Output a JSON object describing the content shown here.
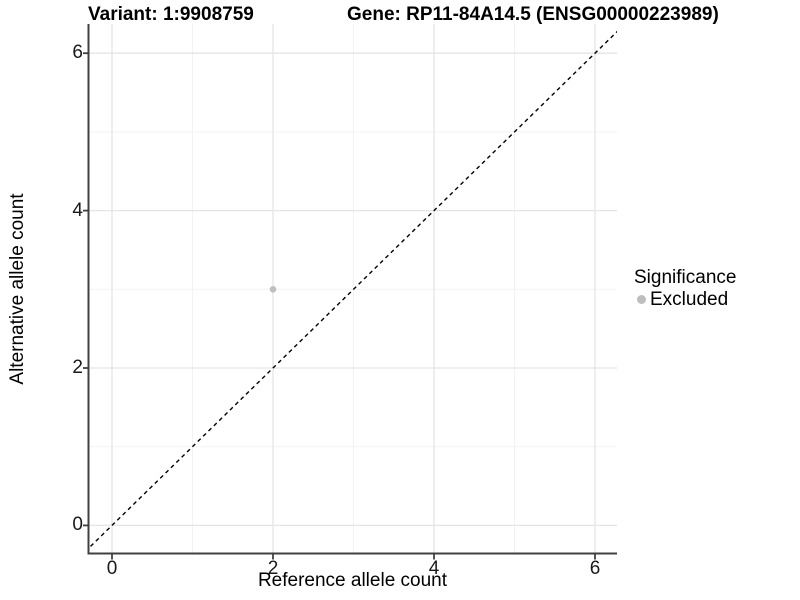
{
  "titles": {
    "left": "Variant: 1:9908759",
    "right": "Gene: RP11-84A14.5 (ENSG00000223989)"
  },
  "legend": {
    "title": "Significance",
    "items": [
      {
        "label": "Excluded",
        "color": "#bebebe"
      }
    ]
  },
  "colors": {
    "point": "#bebebe",
    "grid_major": "#e5e5e5",
    "grid_minor": "#f2f2f2",
    "axis": "#404040",
    "reference_line": "#000000",
    "background": "#ffffff"
  },
  "chart_data": {
    "type": "scatter",
    "title": "Variant: 1:9908759   Gene: RP11-84A14.5 (ENSG00000223989)",
    "xlabel": "Reference allele count",
    "ylabel": "Alternative allele count",
    "xlim": [
      -0.3,
      6.37
    ],
    "ylim": [
      -0.35,
      6.37
    ],
    "x_ticks": [
      0,
      2,
      4,
      6
    ],
    "y_ticks": [
      0,
      2,
      4,
      6
    ],
    "x_tick_labels": [
      "0",
      "2",
      "4",
      "6"
    ],
    "y_tick_labels": [
      "0",
      "2",
      "4",
      "6"
    ],
    "minor_gridlines": [
      1,
      3,
      5
    ],
    "grid": true,
    "legend_position": "right",
    "legend_title": "Significance",
    "series": [
      {
        "name": "Excluded",
        "color": "#bebebe",
        "points": [
          {
            "x": 2,
            "y": 3
          }
        ]
      }
    ],
    "reference_line": {
      "equation": "y = x",
      "style": "dashed",
      "color": "#000000"
    }
  }
}
